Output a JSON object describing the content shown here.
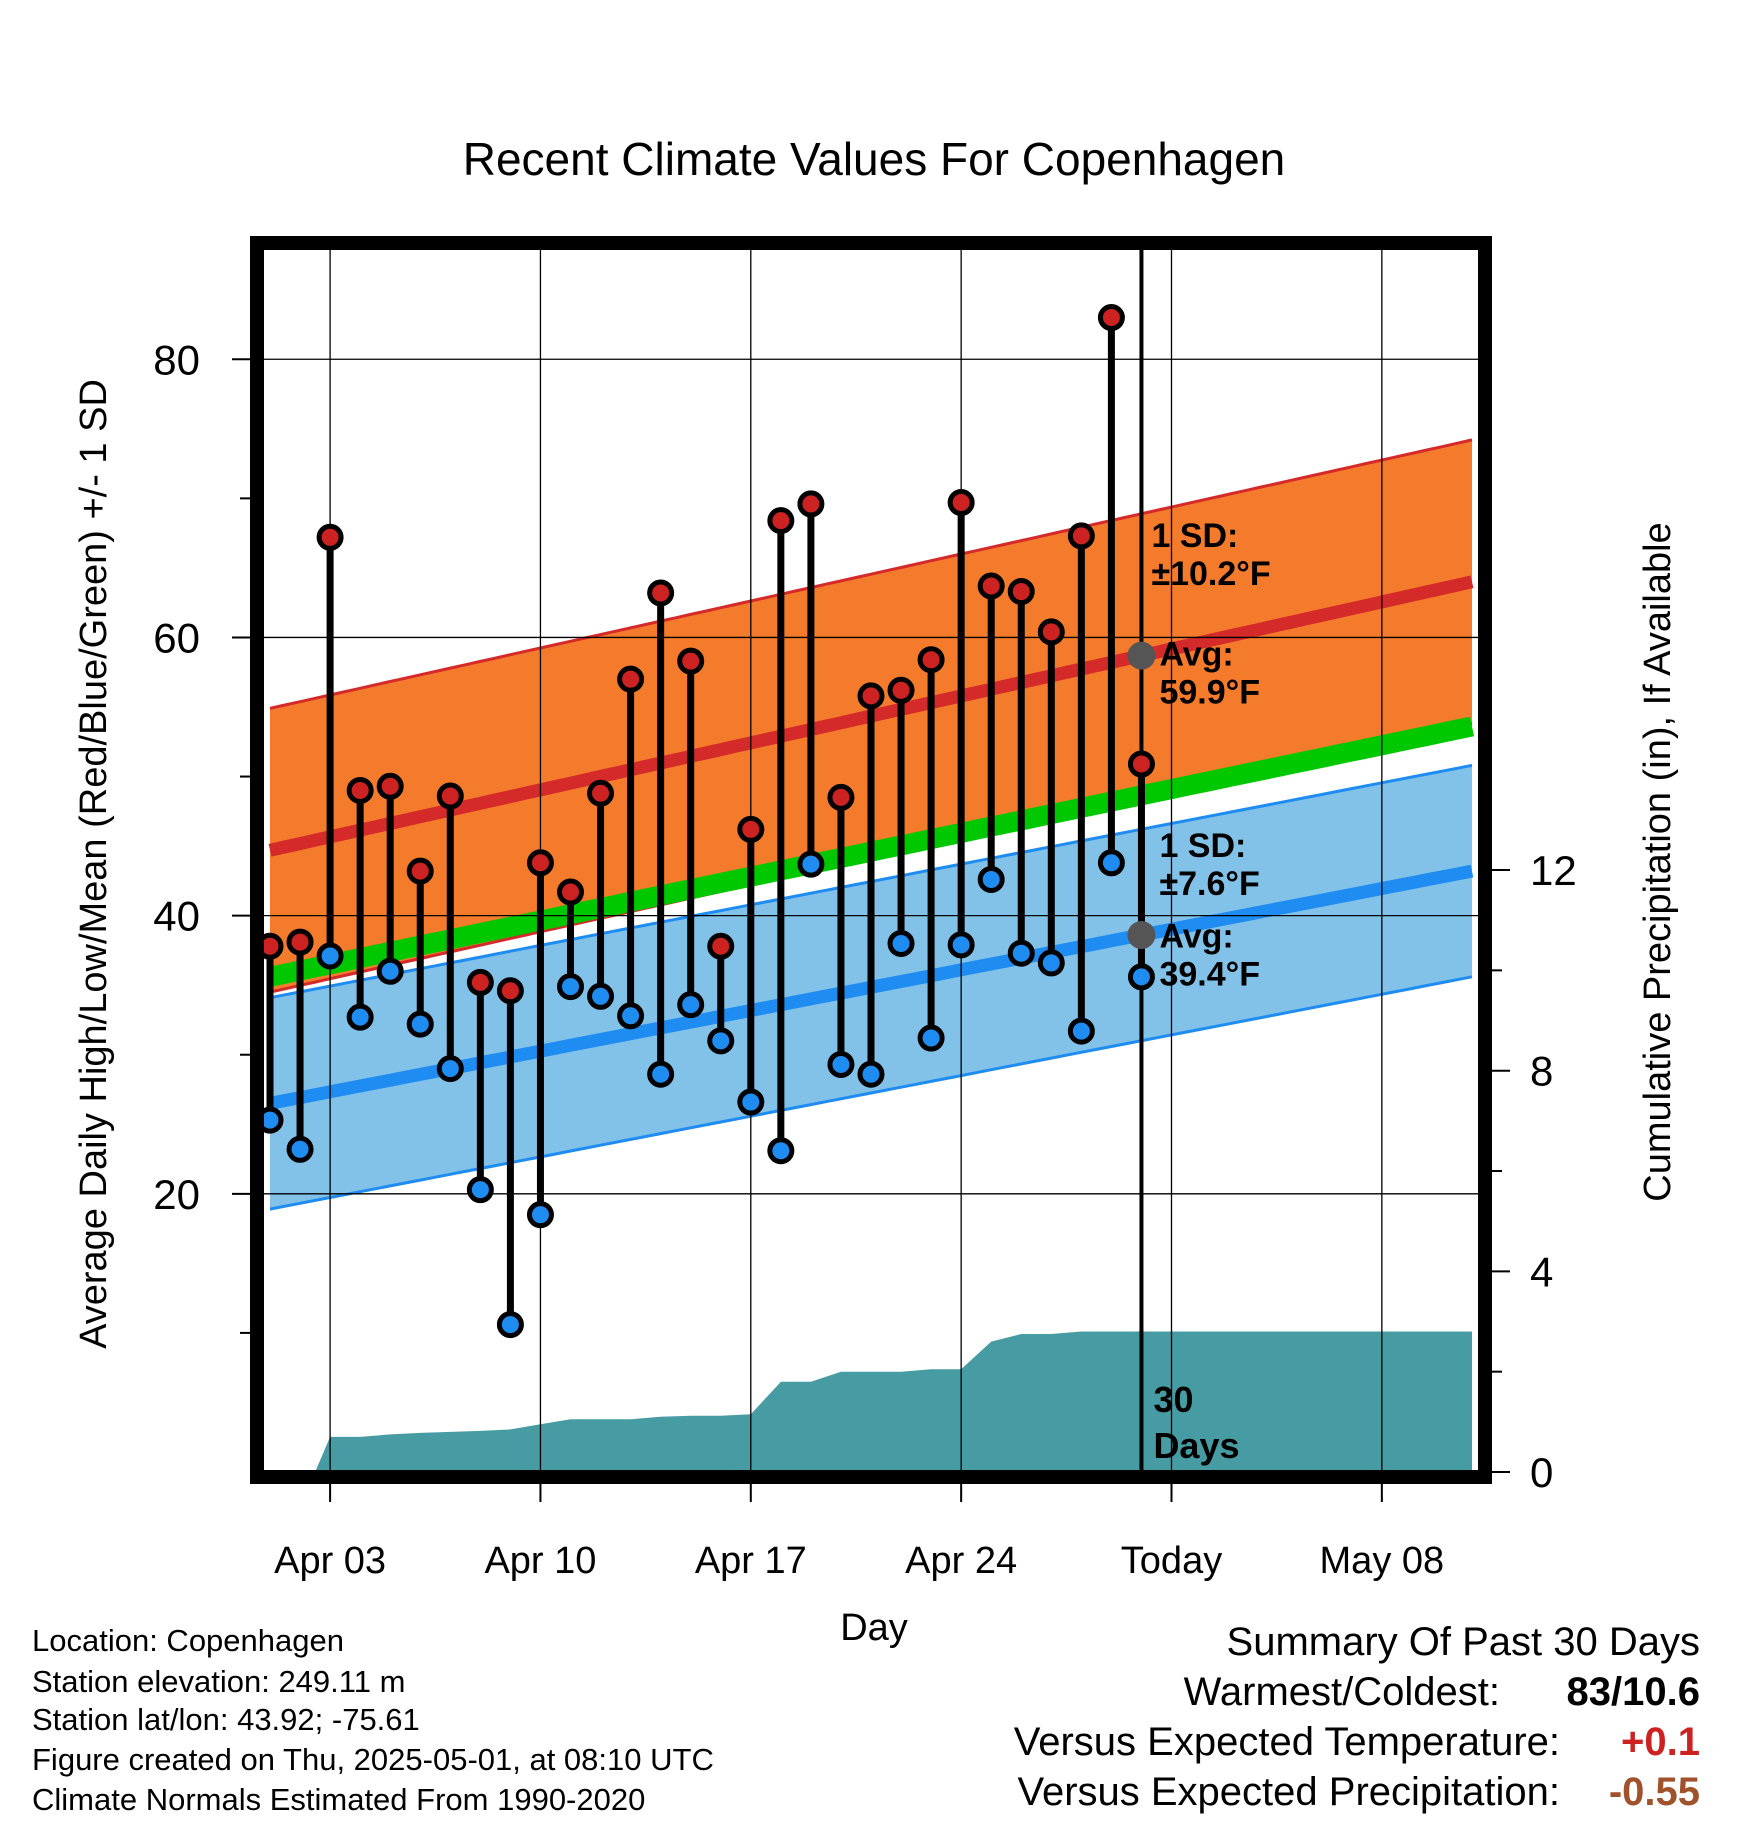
{
  "chart_data": {
    "type": "line",
    "title": "Recent Climate Values For Copenhagen",
    "xlabel": "Day",
    "ylabel": "Average Daily High/Low/Mean (Red/Blue/Green) +/- 1 SD",
    "ylabel_right": "Cumulative Precipitation (in), If Available",
    "ylim": [
      0,
      88
    ],
    "ylim_right": [
      0,
      24.4
    ],
    "yticks": [
      20,
      40,
      60,
      80
    ],
    "yticks_right": [
      0,
      4,
      8,
      12
    ],
    "grid": true,
    "x_tick_labels": [
      "Apr 03",
      "Apr 10",
      "Apr 17",
      "Apr 24",
      "Today",
      "May 08"
    ],
    "today_label": "30\nDays",
    "high_sd_label": "1 SD:\n±10.2°F",
    "high_avg_label": "Avg:\n59.9°F",
    "low_sd_label": "1 SD:\n±7.6°F",
    "low_avg_label": "Avg:\n39.4°F",
    "colors": {
      "high_band": "#f47b2c",
      "high_line": "#d42a2a",
      "low_band": "#83c2e8",
      "low_line": "#1e8cf0",
      "mean": "#00c800",
      "precip": "#479ba3",
      "high_marker": "#cc2222",
      "low_marker": "#1e8cf0",
      "annotation": "#555555"
    },
    "normals": {
      "days": [
        1,
        41
      ],
      "high_mean": [
        44.7,
        64.0
      ],
      "high_sd": 10.2,
      "low_mean": [
        26.5,
        43.2
      ],
      "low_sd": 7.6,
      "mean": [
        35.6,
        53.6
      ]
    },
    "days": [
      1,
      2,
      3,
      4,
      5,
      6,
      7,
      8,
      9,
      10,
      11,
      12,
      13,
      14,
      15,
      16,
      17,
      18,
      19,
      20,
      21,
      22,
      23,
      24,
      25,
      26,
      27,
      28,
      29,
      30
    ],
    "series": [
      {
        "name": "High",
        "values": [
          37.8,
          38.1,
          67.2,
          49.0,
          49.3,
          43.2,
          48.6,
          35.2,
          34.6,
          43.8,
          41.7,
          48.8,
          57.0,
          63.2,
          58.3,
          37.8,
          46.2,
          68.4,
          69.6,
          48.5,
          55.8,
          56.2,
          58.4,
          69.7,
          63.7,
          63.3,
          60.4,
          67.3,
          83.0,
          50.9
        ]
      },
      {
        "name": "Low",
        "values": [
          25.3,
          23.2,
          37.1,
          32.7,
          36.0,
          32.2,
          29.0,
          20.3,
          10.6,
          18.5,
          34.9,
          34.2,
          32.8,
          28.6,
          33.6,
          31.0,
          26.6,
          23.1,
          43.7,
          29.3,
          28.6,
          38.0,
          31.2,
          37.9,
          42.6,
          37.3,
          36.6,
          31.7,
          43.8,
          35.6
        ]
      }
    ],
    "precip_x": [
      1,
      2.5,
      3,
      4,
      5,
      6,
      7,
      8,
      9,
      10,
      11,
      12,
      13,
      14,
      15,
      16,
      17,
      18,
      19,
      20,
      21,
      22,
      23,
      24,
      25,
      26,
      27,
      28,
      29,
      30,
      41
    ],
    "precip_cumulative": [
      0,
      0,
      0.7,
      0.7,
      0.75,
      0.78,
      0.8,
      0.82,
      0.85,
      0.95,
      1.05,
      1.05,
      1.05,
      1.1,
      1.12,
      1.12,
      1.15,
      1.8,
      1.8,
      2.0,
      2.0,
      2.0,
      2.05,
      2.05,
      2.6,
      2.75,
      2.75,
      2.8,
      2.8,
      2.8,
      2.8
    ]
  },
  "info": {
    "location": "Location: Copenhagen",
    "elevation": "Station elevation: 249.11 m",
    "latlon": "Station lat/lon: 43.92; -75.61",
    "created": "Figure created on Thu, 2025-05-01, at 08:10 UTC",
    "normals_period": "Climate Normals Estimated From 1990-2020"
  },
  "summary": {
    "heading": "Summary Of Past 30 Days",
    "warm_cold_label": "Warmest/Coldest:",
    "warm_cold_value": "83/10.6",
    "temp_label": "Versus Expected Temperature:",
    "temp_value": "+0.1",
    "temp_color": "#cc2222",
    "precip_label": "Versus Expected Precipitation:",
    "precip_value": "-0.55",
    "precip_color": "#a0522d"
  }
}
